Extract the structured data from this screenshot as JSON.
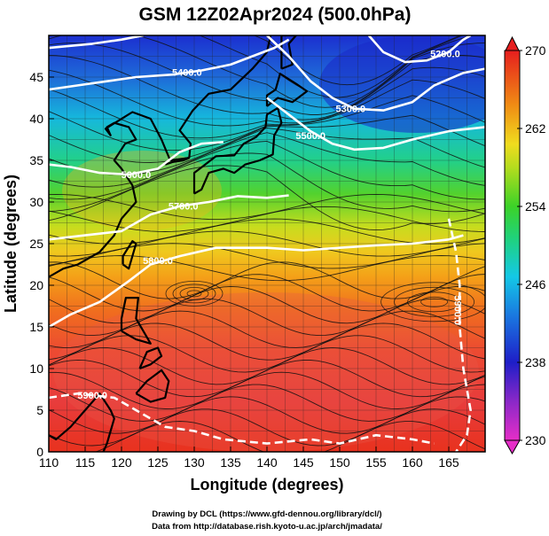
{
  "title": "GSM 12Z02Apr2024 (500.0hPa)",
  "xlabel": "Longitude (degrees)",
  "ylabel": "Latitude  (degrees)",
  "x_ticks": [
    "110",
    "115",
    "120",
    "125",
    "130",
    "135",
    "140",
    "145",
    "150",
    "155",
    "160",
    "165"
  ],
  "y_ticks": [
    "0",
    "5",
    "10",
    "15",
    "20",
    "25",
    "30",
    "35",
    "40",
    "45"
  ],
  "colorbar": {
    "ticks": [
      "230",
      "238",
      "246",
      "254",
      "262",
      "270"
    ],
    "colors": [
      "#e62ec8",
      "#1e1ec8",
      "#14b4e6",
      "#28d23c",
      "#f0dc1e",
      "#f07814",
      "#e61e1e"
    ]
  },
  "contours": [
    {
      "label": "5900.0"
    },
    {
      "label": "5900.0"
    },
    {
      "label": "5800.0"
    },
    {
      "label": "5700.0"
    },
    {
      "label": "5600.0"
    },
    {
      "label": "5500.0"
    },
    {
      "label": "5400.0"
    },
    {
      "label": "5300.0"
    },
    {
      "label": "5200.0"
    }
  ],
  "credits": {
    "line1": "Drawing by DCL (https://www.gfd-dennou.org/library/dcl/)",
    "line2": "Data from http://database.rish.kyoto-u.ac.jp/arch/jmadata/"
  },
  "chart_data": {
    "type": "heatmap",
    "title": "GSM 12Z02Apr2024 (500.0hPa)",
    "xlabel": "Longitude (degrees)",
    "ylabel": "Latitude  (degrees)",
    "xlim": [
      110,
      170
    ],
    "ylim": [
      0,
      50
    ],
    "color_scale": {
      "min": 230,
      "max": 270
    },
    "contour_levels": [
      5200.0,
      5300.0,
      5400.0,
      5500.0,
      5600.0,
      5700.0,
      5800.0,
      5900.0
    ],
    "grid": true,
    "legend": "right"
  }
}
